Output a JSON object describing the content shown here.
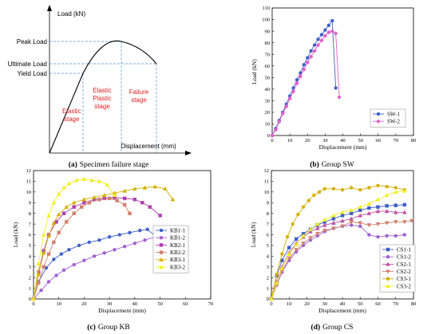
{
  "panels": {
    "a": {
      "caption_letter": "(a)",
      "caption_text": "Specimen failure stage",
      "ylabel": "Load (kN)",
      "xlabel": "Displacement (mm)",
      "levels": [
        "Peak Load",
        "Ultimate Load",
        "Yield Load"
      ],
      "stages": [
        "Elastic stage",
        "Elastic Plastic stage",
        "Failure stage"
      ],
      "stage_lines": [
        [
          "Elastic",
          "stage"
        ],
        [
          "Elastic",
          "Plastic",
          "stage"
        ],
        [
          "Failure",
          "stage"
        ]
      ],
      "colors": {
        "curve": "#000000",
        "dash": "#4a90d9",
        "stage_text": "#e02020"
      }
    },
    "b": {
      "caption_letter": "(b)",
      "caption_text": "Group SW"
    },
    "c": {
      "caption_letter": "(c)",
      "caption_text": "Group KB"
    },
    "d": {
      "caption_letter": "(d)",
      "caption_text": "Group CS"
    }
  },
  "chart_data": [
    {
      "id": "b",
      "type": "line",
      "xlabel": "Displacement (mm)",
      "ylabel": "Load (kN)",
      "xlim": [
        0,
        80
      ],
      "ylim": [
        0,
        110
      ],
      "xticks": [
        0,
        10,
        20,
        30,
        40,
        50,
        60,
        70,
        80
      ],
      "yticks": [
        0,
        10,
        20,
        30,
        40,
        50,
        60,
        70,
        80,
        90,
        100,
        110
      ],
      "legend": "bottom-right",
      "series": [
        {
          "name": "SW-1",
          "color": "#4060c8",
          "marker": "circle",
          "x": [
            0,
            2,
            4,
            6,
            8,
            10,
            12,
            14,
            16,
            18,
            20,
            22,
            24,
            26,
            28,
            30,
            32,
            34,
            36
          ],
          "y": [
            0,
            6,
            13,
            20,
            27,
            34,
            41,
            48,
            54,
            61,
            67,
            73,
            78,
            83,
            87,
            91,
            95,
            99,
            41
          ]
        },
        {
          "name": "SW-2",
          "color": "#e060c8",
          "marker": "diamond",
          "x": [
            0,
            2,
            4,
            6,
            8,
            10,
            12,
            14,
            16,
            18,
            20,
            22,
            24,
            26,
            28,
            30,
            32,
            34,
            36,
            38
          ],
          "y": [
            0,
            5,
            12,
            19,
            25,
            32,
            38,
            45,
            51,
            57,
            63,
            68,
            73,
            78,
            82,
            86,
            89,
            90,
            88,
            33
          ]
        }
      ]
    },
    {
      "id": "c",
      "type": "line",
      "xlabel": "Displacement (mm)",
      "ylabel": "Load (kN)",
      "xlim": [
        0,
        70
      ],
      "ylim": [
        0,
        12
      ],
      "xticks": [
        0,
        10,
        20,
        30,
        40,
        50,
        60,
        70
      ],
      "yticks": [
        0,
        1,
        2,
        3,
        4,
        5,
        6,
        7,
        8,
        9,
        10,
        11,
        12
      ],
      "legend": "right",
      "series": [
        {
          "name": "KB1-1",
          "color": "#4060c8",
          "marker": "circle",
          "x": [
            0,
            2,
            5,
            8,
            11,
            14,
            18,
            22,
            26,
            30,
            34,
            38,
            42,
            45,
            48,
            51
          ],
          "y": [
            0,
            1.6,
            2.9,
            3.7,
            4.2,
            4.6,
            5.0,
            5.3,
            5.5,
            5.8,
            6.0,
            6.2,
            6.4,
            6.5,
            5.9,
            5.3
          ]
        },
        {
          "name": "KB1-2",
          "color": "#a060d0",
          "marker": "circle",
          "x": [
            0,
            3,
            6,
            9,
            12,
            16,
            20,
            24,
            28,
            32,
            36,
            40,
            44,
            48,
            52,
            56
          ],
          "y": [
            0,
            0.8,
            1.6,
            2.2,
            2.7,
            3.2,
            3.6,
            4.0,
            4.3,
            4.6,
            4.9,
            5.2,
            5.5,
            5.8,
            5.9,
            5.2
          ]
        },
        {
          "name": "KB2-1",
          "color": "#b040b0",
          "marker": "square",
          "x": [
            0,
            2,
            4,
            6,
            9,
            12,
            16,
            20,
            24,
            28,
            32,
            36,
            40,
            43,
            46,
            50
          ],
          "y": [
            0,
            2.5,
            4.5,
            6.0,
            7.2,
            8.0,
            8.6,
            9.0,
            9.3,
            9.4,
            9.5,
            9.4,
            9.3,
            9.0,
            8.6,
            7.8
          ]
        },
        {
          "name": "KB2-2",
          "color": "#d08070",
          "marker": "square",
          "x": [
            0,
            2,
            4,
            6,
            8,
            10,
            13,
            16,
            19,
            22,
            26,
            30,
            33,
            36,
            38
          ],
          "y": [
            0,
            1.5,
            3.0,
            4.2,
            5.3,
            6.2,
            7.2,
            8.0,
            8.6,
            9.0,
            9.3,
            9.4,
            9.2,
            8.8,
            8.0
          ]
        },
        {
          "name": "KB3-1",
          "color": "#d4b000",
          "marker": "triangle",
          "x": [
            0,
            2,
            4,
            6,
            8,
            10,
            13,
            16,
            20,
            24,
            28,
            32,
            36,
            40,
            44,
            48,
            52,
            55
          ],
          "y": [
            0,
            2.3,
            4.3,
            5.9,
            7.1,
            7.9,
            8.6,
            9.0,
            9.3,
            9.5,
            9.7,
            9.9,
            10.1,
            10.3,
            10.4,
            10.5,
            10.3,
            9.3
          ]
        },
        {
          "name": "KB3-2",
          "color": "#f0f020",
          "marker": "triangle",
          "x": [
            0,
            2,
            4,
            6,
            8,
            10,
            12,
            14,
            17,
            20,
            23,
            26,
            29,
            32
          ],
          "y": [
            0,
            3.3,
            6.0,
            7.8,
            9.0,
            9.8,
            10.4,
            10.8,
            11.1,
            11.2,
            11.1,
            11.0,
            10.7,
            9.7
          ]
        }
      ]
    },
    {
      "id": "d",
      "type": "line",
      "xlabel": "Displacement (mm)",
      "ylabel": "Load (kN)",
      "xlim": [
        0,
        80
      ],
      "ylim": [
        0,
        12
      ],
      "xticks": [
        0,
        10,
        20,
        30,
        40,
        50,
        60,
        70,
        80
      ],
      "yticks": [
        0,
        1,
        2,
        3,
        4,
        5,
        6,
        7,
        8,
        9,
        10,
        11,
        12
      ],
      "legend": "bottom-right",
      "series": [
        {
          "name": "CS1-1",
          "color": "#4060c8",
          "marker": "square",
          "x": [
            0,
            3,
            6,
            10,
            14,
            18,
            22,
            26,
            30,
            35,
            40,
            45,
            50,
            55,
            60,
            65,
            70,
            75
          ],
          "y": [
            0,
            2.2,
            3.6,
            4.8,
            5.6,
            6.1,
            6.5,
            6.9,
            7.2,
            7.5,
            7.8,
            8.0,
            8.3,
            8.5,
            8.6,
            8.7,
            8.75,
            8.8
          ]
        },
        {
          "name": "CS1-2",
          "color": "#a060d0",
          "marker": "circle",
          "x": [
            0,
            3,
            6,
            10,
            14,
            18,
            22,
            26,
            30,
            35,
            40,
            45,
            50,
            55,
            60,
            65,
            70,
            75
          ],
          "y": [
            0,
            1.3,
            2.5,
            3.6,
            4.4,
            5.0,
            5.5,
            5.9,
            6.3,
            6.6,
            6.8,
            6.9,
            6.8,
            6.0,
            5.8,
            5.9,
            5.9,
            6.0
          ]
        },
        {
          "name": "CS2-1",
          "color": "#c050a0",
          "marker": "triangle",
          "x": [
            0,
            3,
            6,
            10,
            14,
            18,
            22,
            26,
            30,
            35,
            40,
            45,
            50,
            55,
            60,
            65,
            70,
            75
          ],
          "y": [
            0,
            1.6,
            3.0,
            4.3,
            5.2,
            5.8,
            6.3,
            6.6,
            6.9,
            7.1,
            7.3,
            7.5,
            7.8,
            8.0,
            8.2,
            8.2,
            8.1,
            8.1
          ]
        },
        {
          "name": "CS2-2",
          "color": "#d08070",
          "marker": "tri-down",
          "x": [
            0,
            3,
            6,
            10,
            14,
            18,
            22,
            26,
            30,
            35,
            40,
            45,
            50,
            55,
            60,
            65,
            70,
            75,
            79
          ],
          "y": [
            0,
            1.3,
            2.6,
            3.8,
            4.6,
            5.2,
            5.7,
            6.1,
            6.4,
            6.6,
            6.8,
            7.2,
            7.1,
            6.9,
            7.0,
            7.1,
            7.2,
            7.2,
            7.3
          ]
        },
        {
          "name": "CS3-1",
          "color": "#d4b000",
          "marker": "circle",
          "x": [
            0,
            3,
            6,
            9,
            12,
            15,
            18,
            21,
            24,
            27,
            30,
            35,
            40,
            45,
            50,
            55,
            60,
            65,
            70,
            75
          ],
          "y": [
            0,
            2.3,
            4.2,
            5.8,
            7.0,
            7.9,
            8.6,
            9.2,
            9.7,
            10.0,
            10.3,
            10.3,
            10.2,
            10.4,
            10.2,
            10.4,
            10.6,
            10.5,
            10.4,
            10.2
          ]
        },
        {
          "name": "CS3-2",
          "color": "#f0f020",
          "marker": "triangle",
          "x": [
            0,
            3,
            6,
            10,
            14,
            18,
            22,
            26,
            30,
            35,
            40,
            45,
            50,
            55,
            60,
            65,
            70,
            75
          ],
          "y": [
            0,
            1.5,
            2.9,
            4.2,
            5.1,
            5.9,
            6.5,
            7.0,
            7.4,
            7.8,
            8.1,
            8.3,
            8.6,
            8.9,
            9.3,
            9.7,
            10.0,
            10.1
          ]
        }
      ]
    }
  ]
}
